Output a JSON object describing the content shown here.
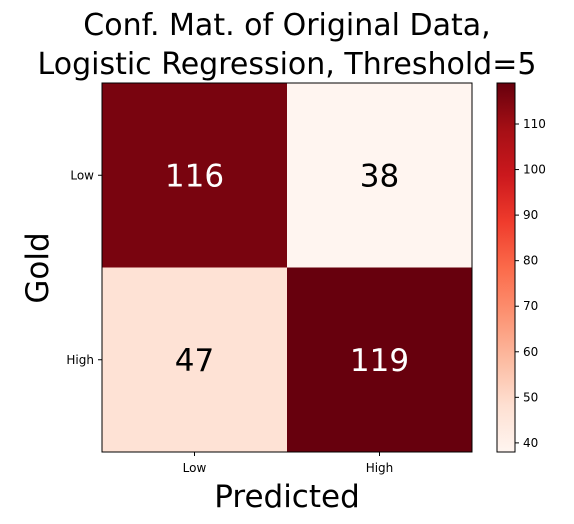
{
  "chart_data": {
    "type": "heatmap",
    "title_lines": [
      "Conf. Mat. of Original Data,",
      "Logistic Regression, Threshold=5"
    ],
    "xlabel": "Predicted",
    "ylabel": "Gold",
    "x_categories": [
      "Low",
      "High"
    ],
    "y_categories": [
      "Low",
      "High"
    ],
    "values": [
      [
        116,
        38
      ],
      [
        47,
        119
      ]
    ],
    "colormap": "Reds",
    "colorbar": {
      "min": 38,
      "max": 119,
      "ticks": [
        40,
        50,
        60,
        70,
        80,
        90,
        100,
        110
      ]
    },
    "text_color_dark_cells": "#ffffff",
    "text_color_light_cells": "#000000"
  }
}
